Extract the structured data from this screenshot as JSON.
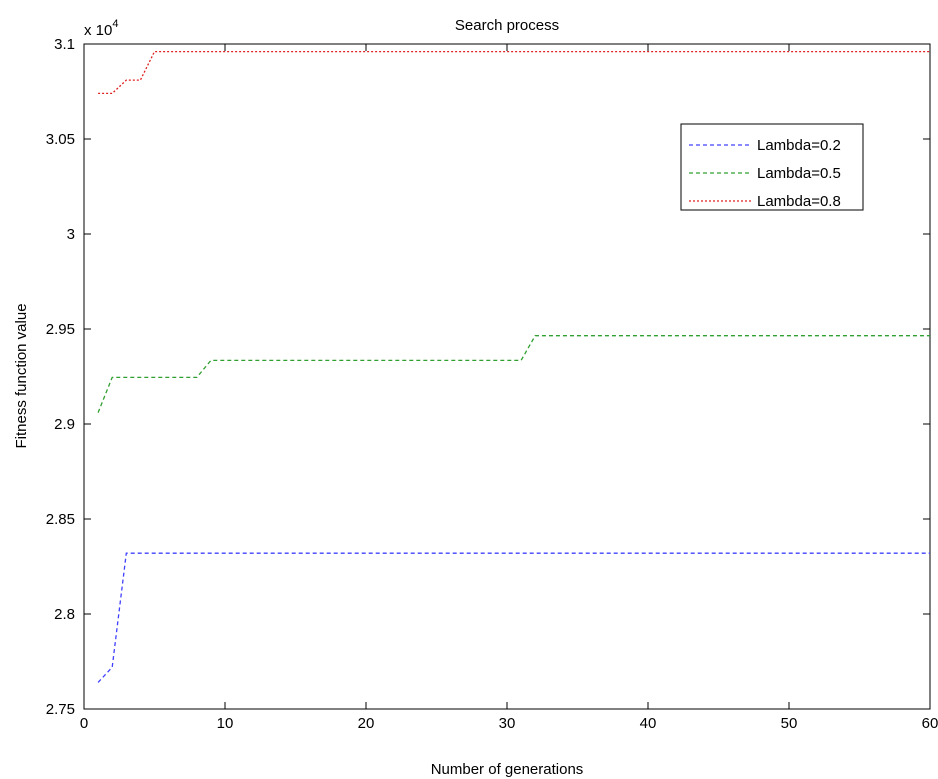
{
  "chart_data": {
    "type": "line",
    "title": "Search process",
    "xlabel": "Number of generations",
    "ylabel": "Fitness function value",
    "y_multiplier_label": "x 10",
    "y_multiplier_exponent": "4",
    "xlim": [
      0,
      60
    ],
    "ylim": [
      2.75,
      3.1
    ],
    "x_ticks": [
      0,
      10,
      20,
      30,
      40,
      50,
      60
    ],
    "x_tick_labels": [
      "0",
      "10",
      "20",
      "30",
      "40",
      "50",
      "60"
    ],
    "y_ticks": [
      2.75,
      2.8,
      2.85,
      2.9,
      2.95,
      3.0,
      3.05,
      3.1
    ],
    "y_tick_labels": [
      "2.75",
      "2.8",
      "2.85",
      "2.9",
      "2.95",
      "3",
      "3.05",
      "3.1"
    ],
    "grid": false,
    "legend_position": "top-right",
    "series": [
      {
        "name": "Lambda=0.2",
        "color": "#4040ff",
        "dash": "dashed",
        "x": [
          1,
          2,
          3,
          60
        ],
        "y": [
          2.764,
          2.772,
          2.832,
          2.832
        ]
      },
      {
        "name": "Lambda=0.5",
        "color": "#30a030",
        "dash": "dashed",
        "x": [
          1,
          2,
          8,
          9,
          31,
          32,
          60
        ],
        "y": [
          2.906,
          2.9245,
          2.9245,
          2.9335,
          2.9335,
          2.9465,
          2.9465
        ]
      },
      {
        "name": "Lambda=0.8",
        "color": "#e02020",
        "dash": "dotted",
        "x": [
          1,
          2,
          3,
          4,
          5,
          60
        ],
        "y": [
          3.074,
          3.074,
          3.081,
          3.081,
          3.096,
          3.096
        ]
      }
    ]
  }
}
